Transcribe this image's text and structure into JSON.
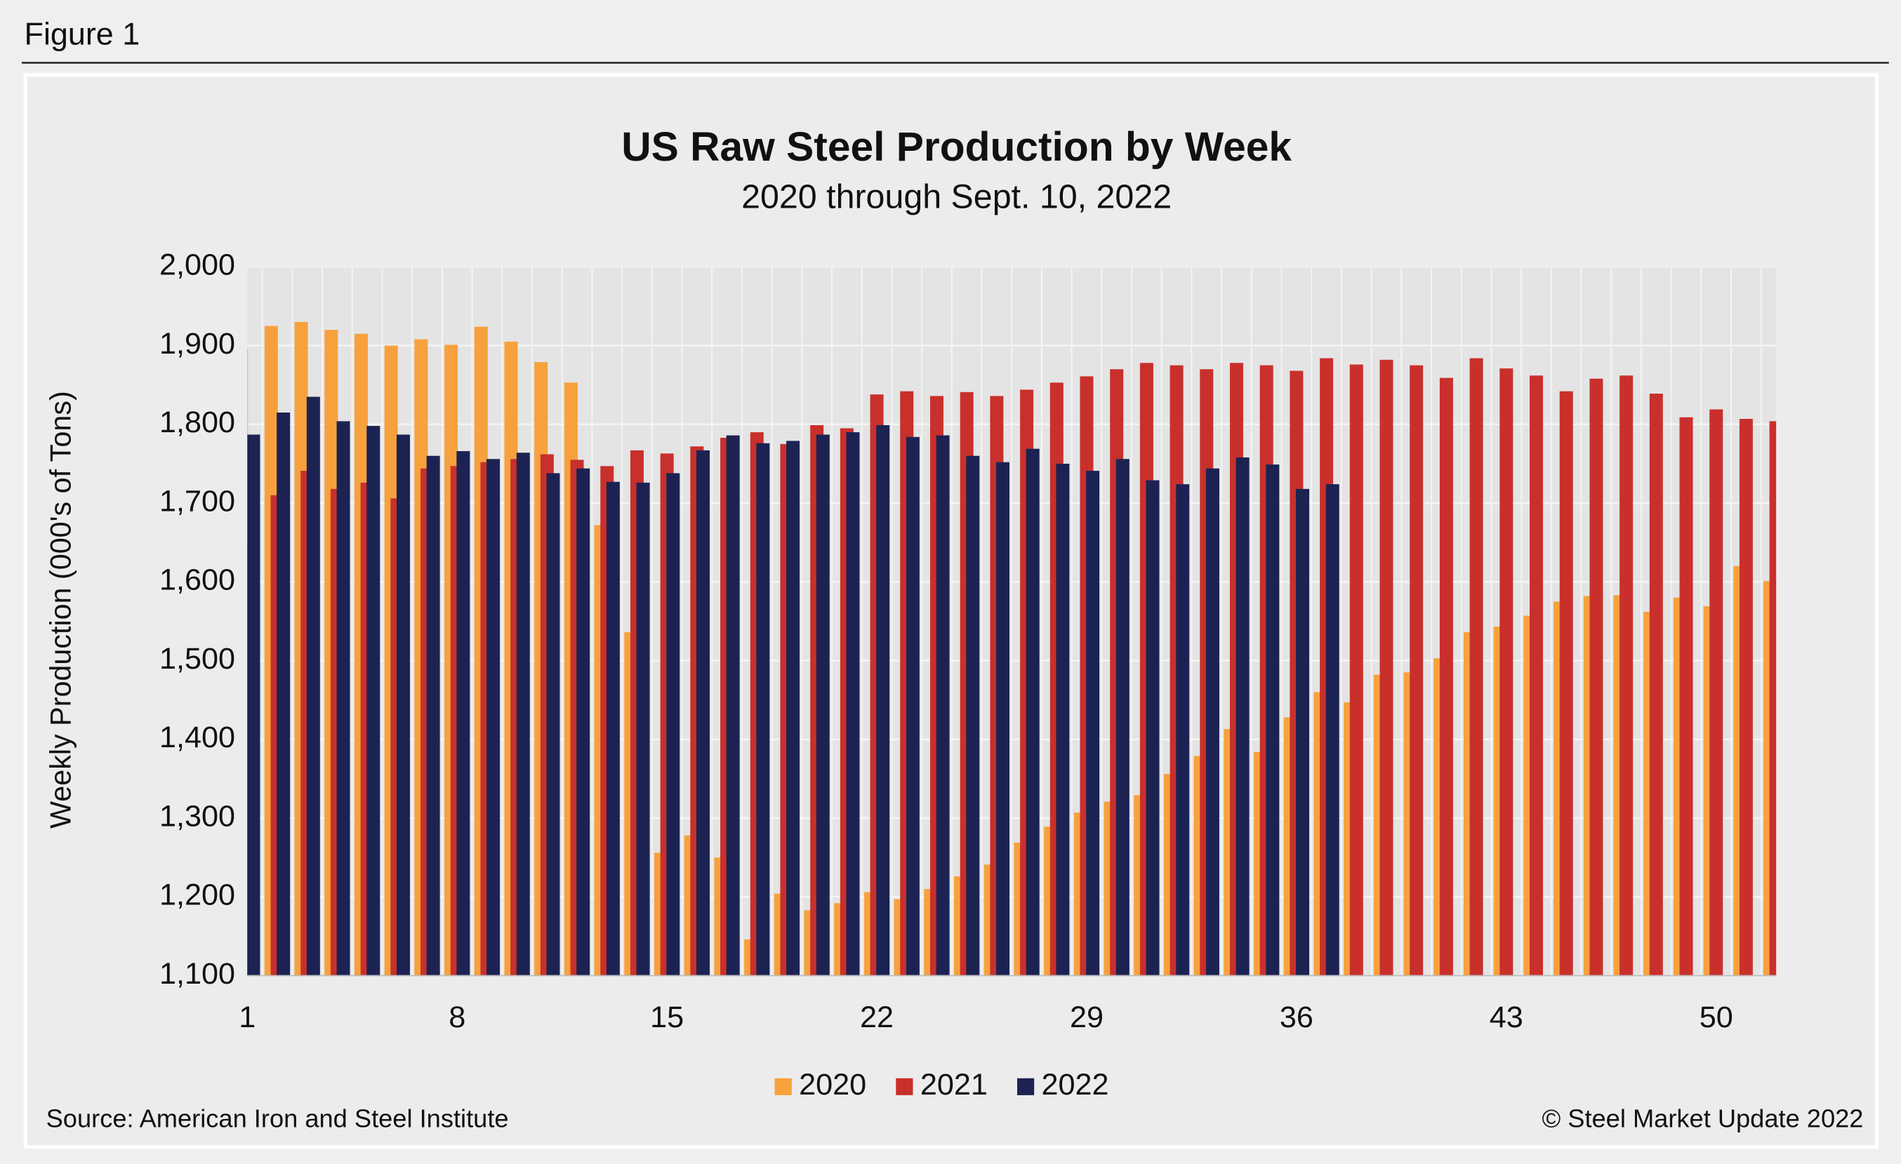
{
  "figure_label": "Figure 1",
  "chart_data": {
    "type": "bar",
    "title": "US Raw Steel Production by Week",
    "subtitle": "2020 through Sept. 10, 2022",
    "y_label": "Weekly Production (000's of Tons)",
    "source": "Source: American Iron and Steel Institute",
    "copyright": "© Steel Market Update 2022",
    "x": [
      1,
      2,
      3,
      4,
      5,
      6,
      7,
      8,
      9,
      10,
      11,
      12,
      13,
      14,
      15,
      16,
      17,
      18,
      19,
      20,
      21,
      22,
      23,
      24,
      25,
      26,
      27,
      28,
      29,
      30,
      31,
      32,
      33,
      34,
      35,
      36,
      37,
      38,
      39,
      40,
      41,
      42,
      43,
      44,
      45,
      46,
      47,
      48,
      49,
      50,
      51,
      52
    ],
    "xlim": [
      1,
      52
    ],
    "xticks": [
      1,
      8,
      15,
      22,
      29,
      36,
      43,
      50
    ],
    "ylim": [
      1100,
      2000
    ],
    "yticks": [
      {
        "value": 1100,
        "label": "1,100"
      },
      {
        "value": 1200,
        "label": "1,200"
      },
      {
        "value": 1300,
        "label": "1,300"
      },
      {
        "value": 1400,
        "label": "1,400"
      },
      {
        "value": 1500,
        "label": "1,500"
      },
      {
        "value": 1600,
        "label": "1,600"
      },
      {
        "value": 1700,
        "label": "1,700"
      },
      {
        "value": 1800,
        "label": "1,800"
      },
      {
        "value": 1900,
        "label": "1,900"
      },
      {
        "value": 2000,
        "label": "2,000"
      }
    ],
    "grid": true,
    "legend": "bottom",
    "series": [
      {
        "name": "2020",
        "color": "#f7a13c",
        "values": [
          1895,
          1925,
          1930,
          1920,
          1915,
          1900,
          1908,
          1901,
          1924,
          1905,
          1879,
          1853,
          1672,
          1536,
          1256,
          1278,
          1250,
          1146,
          1204,
          1183,
          1192,
          1206,
          1197,
          1210,
          1226,
          1241,
          1269,
          1289,
          1307,
          1321,
          1329,
          1356,
          1379,
          1413,
          1384,
          1428,
          1460,
          1447,
          1482,
          1485,
          1503,
          1536,
          1543,
          1557,
          1575,
          1582,
          1583,
          1562,
          1580,
          1569,
          1620,
          1601
        ]
      },
      {
        "name": "2021",
        "color": "#c9302c",
        "values": [
          1649,
          1710,
          1741,
          1718,
          1726,
          1706,
          1744,
          1747,
          1752,
          1756,
          1762,
          1755,
          1747,
          1767,
          1763,
          1772,
          1783,
          1790,
          1775,
          1799,
          1795,
          1838,
          1842,
          1836,
          1841,
          1836,
          1844,
          1853,
          1861,
          1870,
          1878,
          1875,
          1870,
          1878,
          1875,
          1868,
          1884,
          1876,
          1882,
          1875,
          1859,
          1884,
          1871,
          1862,
          1842,
          1858,
          1862,
          1839,
          1809,
          1819,
          1807,
          1804
        ]
      },
      {
        "name": "2022",
        "color": "#1c2353",
        "values": [
          1787,
          1815,
          1835,
          1804,
          1798,
          1787,
          1760,
          1766,
          1756,
          1764,
          1738,
          1744,
          1727,
          1726,
          1738,
          1767,
          1786,
          1776,
          1779,
          1787,
          1790,
          1799,
          1784,
          1786,
          1760,
          1752,
          1769,
          1750,
          1741,
          1756,
          1729,
          1724,
          1744,
          1758,
          1749,
          1718,
          1724,
          null,
          null,
          null,
          null,
          null,
          null,
          null,
          null,
          null,
          null,
          null,
          null,
          null,
          null,
          null
        ]
      }
    ]
  }
}
